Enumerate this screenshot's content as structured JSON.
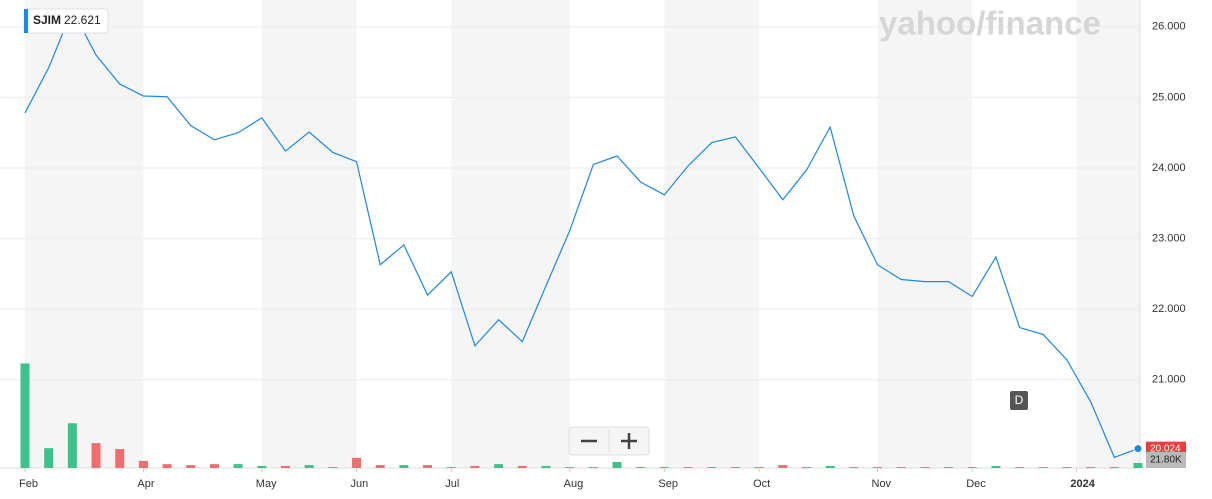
{
  "chart_data": {
    "type": "line",
    "symbol": "SJIM",
    "header_price": "22.621",
    "watermark": "yahoo/finance",
    "interval_button": "D",
    "x": [
      0,
      1,
      2,
      3,
      4,
      5,
      6,
      7,
      8,
      9,
      10,
      11,
      12,
      13,
      14,
      15,
      16,
      17,
      18,
      19,
      20,
      21,
      22,
      23,
      24,
      25,
      26,
      27,
      28,
      29,
      30,
      31,
      32,
      33,
      34,
      35,
      36,
      37,
      38,
      39,
      40,
      41,
      42,
      43,
      44,
      45,
      46,
      47
    ],
    "xlim": [
      0,
      47
    ],
    "xticks": [
      {
        "value": 0,
        "label": "Feb"
      },
      {
        "value": 5,
        "label": "Apr"
      },
      {
        "value": 10,
        "label": "May"
      },
      {
        "value": 14,
        "label": "Jun"
      },
      {
        "value": 18,
        "label": "Jul"
      },
      {
        "value": 23,
        "label": "Aug"
      },
      {
        "value": 27,
        "label": "Sep"
      },
      {
        "value": 31,
        "label": "Oct"
      },
      {
        "value": 36,
        "label": "Nov"
      },
      {
        "value": 40,
        "label": "Dec"
      },
      {
        "value": 44.4,
        "label": "2024"
      }
    ],
    "ylim": [
      19.75,
      26.38
    ],
    "yticks": [
      {
        "value": 21,
        "label": "21.000"
      },
      {
        "value": 22,
        "label": "22.000"
      },
      {
        "value": 23,
        "label": "23.000"
      },
      {
        "value": 24,
        "label": "24.000"
      },
      {
        "value": 25,
        "label": "25.000"
      },
      {
        "value": 26,
        "label": "26.000"
      }
    ],
    "grid": true,
    "series": [
      {
        "name": "SJIM",
        "color": "#1e88e5",
        "values": [
          24.78,
          25.42,
          26.24,
          25.6,
          25.19,
          25.02,
          25.01,
          24.6,
          24.4,
          24.5,
          24.71,
          24.24,
          24.51,
          24.22,
          24.09,
          22.63,
          22.91,
          22.2,
          22.53,
          21.48,
          21.85,
          21.54,
          22.33,
          23.11,
          24.05,
          24.17,
          23.8,
          23.62,
          24.03,
          24.36,
          24.44,
          24.0,
          23.55,
          23.97,
          24.58,
          23.32,
          22.63,
          22.42,
          22.39,
          22.39,
          22.18,
          22.74,
          21.74,
          21.64,
          21.28,
          20.69,
          19.9,
          20.024
        ]
      }
    ],
    "last_label": {
      "value": 20.024,
      "label": "20.024"
    },
    "volume": {
      "values": [
        458,
        87,
        196,
        109,
        83,
        31,
        17,
        13,
        17,
        17,
        9,
        9,
        13,
        4,
        44,
        13,
        13,
        13,
        4,
        9,
        17,
        9,
        9,
        4,
        4,
        26,
        4,
        4,
        4,
        4,
        4,
        4,
        13,
        4,
        9,
        4,
        4,
        4,
        4,
        4,
        4,
        9,
        4,
        4,
        4,
        4,
        4,
        21.8
      ],
      "ylim": [
        0,
        600
      ],
      "up_color": "#3cc38a",
      "down_color": "#f26d6d",
      "last_label": "21.80K"
    }
  }
}
